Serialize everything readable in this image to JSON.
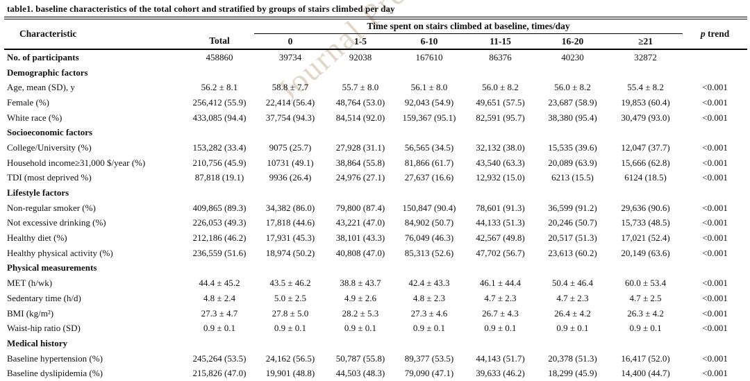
{
  "title": "table1. baseline characteristics of the total cohort and stratified by groups of stairs climbed per day",
  "watermark": "Journal Pre-proof",
  "table": {
    "header": {
      "characteristic": "Characteristic",
      "total": "Total",
      "spanner": "Time spent on stairs climbed at baseline, times/day",
      "groups": [
        "0",
        "1-5",
        "6-10",
        "11-15",
        "16-20",
        "≥21"
      ],
      "p_italic": "p",
      "p_rest": " trend"
    },
    "rows": [
      {
        "type": "data",
        "bold": true,
        "label": "No. of participants",
        "values": [
          "458860",
          "39734",
          "92038",
          "167610",
          "86376",
          "40230",
          "32872",
          ""
        ]
      },
      {
        "type": "section",
        "label": "Demographic factors"
      },
      {
        "type": "data",
        "label": "Age, mean (SD), y",
        "values": [
          "56.2 ± 8.1",
          "58.8 ± 7.7",
          "55.7 ± 8.0",
          "56.1 ± 8.0",
          "56.0 ± 8.2",
          "56.0 ± 8.2",
          "55.4 ± 8.2",
          "<0.001"
        ]
      },
      {
        "type": "data",
        "label": "Female (%)",
        "values": [
          "256,412 (55.9)",
          "22,414 (56.4)",
          "48,764 (53.0)",
          "92,043 (54.9)",
          "49,651 (57.5)",
          "23,687 (58.9)",
          "19,853 (60.4)",
          "<0.001"
        ]
      },
      {
        "type": "data",
        "label": "White race (%)",
        "values": [
          "433,085 (94.4)",
          "37,754 (94.3)",
          "84,514 (92.0)",
          "159,367 (95.1)",
          "82,591 (95.7)",
          "38,380 (95.4)",
          "30,479 (93.0)",
          "<0.001"
        ]
      },
      {
        "type": "section",
        "label": "Socioeconomic factors"
      },
      {
        "type": "data",
        "label": "College/University (%)",
        "values": [
          "153,282 (33.4)",
          "9075 (25.7)",
          "27,928 (31.1)",
          "56,565 (34.5)",
          "32,132 (38.0)",
          "15,535 (39.6)",
          "12,047 (37.7)",
          "<0.001"
        ]
      },
      {
        "type": "data",
        "label": "Household income≥31,000 $/year (%)",
        "values": [
          "210,756 (45.9)",
          "10731 (49.1)",
          "38,864 (55.8)",
          "81,866 (61.7)",
          "43,540 (63.3)",
          "20,089 (63.9)",
          "15,666 (62.8)",
          "<0.001"
        ]
      },
      {
        "type": "data",
        "label": "TDI (most deprived %)",
        "values": [
          "87,818 (19.1)",
          "9936 (26.4)",
          "24,976 (27.1)",
          "27,637 (16.6)",
          "12,932 (15.0)",
          "6213 (15.5)",
          "6124 (18.5)",
          "<0.001"
        ]
      },
      {
        "type": "section",
        "label": "Lifestyle factors"
      },
      {
        "type": "data",
        "label": "Non-regular smoker (%)",
        "values": [
          "409,865 (89.3)",
          "34,382 (86.0)",
          "79,800 (87.4)",
          "150,847 (90.4)",
          "78,601 (91.3)",
          "36,599 (91.2)",
          "29,636 (90.6)",
          "<0.001"
        ]
      },
      {
        "type": "data",
        "label": "Not excessive drinking (%)",
        "values": [
          "226,053 (49.3)",
          "17,818 (44.6)",
          "43,221 (47.0)",
          "84,902 (50.7)",
          "44,133 (51.3)",
          "20,246 (50.7)",
          "15,733 (48.5)",
          "<0.001"
        ]
      },
      {
        "type": "data",
        "label": "Healthy diet (%)",
        "values": [
          "212,186 (46.2)",
          "17,931 (45.3)",
          "38,101 (43.3)",
          "76,049 (46.3)",
          "42,567 (49.8)",
          "20,517 (51.3)",
          "17,021 (52.4)",
          "<0.001"
        ]
      },
      {
        "type": "data",
        "label": "Healthy physical activity (%)",
        "values": [
          "236,559 (51.6)",
          "18,974 (50.2)",
          "40,808 (47.0)",
          "85,313 (52.6)",
          "47,702 (56.7)",
          "23,613 (60.2)",
          "20,149 (63.6)",
          "<0.001"
        ]
      },
      {
        "type": "section",
        "label": "Physical measurements"
      },
      {
        "type": "data",
        "label": "MET (h/wk)",
        "values": [
          "44.4 ± 45.2",
          "43.5 ± 46.2",
          "38.8 ± 43.7",
          "42.4 ± 43.3",
          "46.1 ± 44.4",
          "50.4 ± 46.4",
          "60.0 ± 53.4",
          "<0.001"
        ]
      },
      {
        "type": "data",
        "label": "Sedentary time (h/d)",
        "values": [
          "4.8 ± 2.4",
          "5.0 ± 2.5",
          "4.9 ± 2.6",
          "4.8 ± 2.3",
          "4.7 ± 2.3",
          "4.7 ± 2.3",
          "4.7 ± 2.5",
          "<0.001"
        ]
      },
      {
        "type": "data",
        "label": "BMI (kg/m²)",
        "values": [
          "27.3 ± 4.7",
          "27.8 ± 5.0",
          "28.2 ± 5.3",
          "27.3 ± 4.6",
          "26.7 ± 4.3",
          "26.4 ± 4.2",
          "26.3 ± 4.2",
          "<0.001"
        ]
      },
      {
        "type": "data",
        "label": "Waist-hip ratio (SD)",
        "values": [
          "0.9 ± 0.1",
          "0.9 ± 0.1",
          "0.9 ± 0.1",
          "0.9 ± 0.1",
          "0.9 ± 0.1",
          "0.9 ± 0.1",
          "0.9 ± 0.1",
          "<0.001"
        ]
      },
      {
        "type": "section",
        "label": "Medical history"
      },
      {
        "type": "data",
        "label": "Baseline hypertension (%)",
        "values": [
          "245,264 (53.5)",
          "24,162 (56.5)",
          "50,787 (55.8)",
          "89,377 (53.5)",
          "44,143 (51.7)",
          "20,378 (51.3)",
          "16,417 (52.0)",
          "<0.001"
        ]
      },
      {
        "type": "data",
        "label": "Baseline dyslipidemia (%)",
        "values": [
          "215,826 (47.0)",
          "19,901 (48.8)",
          "44,503 (48.3)",
          "79,090 (47.1)",
          "39,633 (46.2)",
          "18,299 (45.9)",
          "14,400 (44.7)",
          "<0.001"
        ]
      }
    ]
  }
}
